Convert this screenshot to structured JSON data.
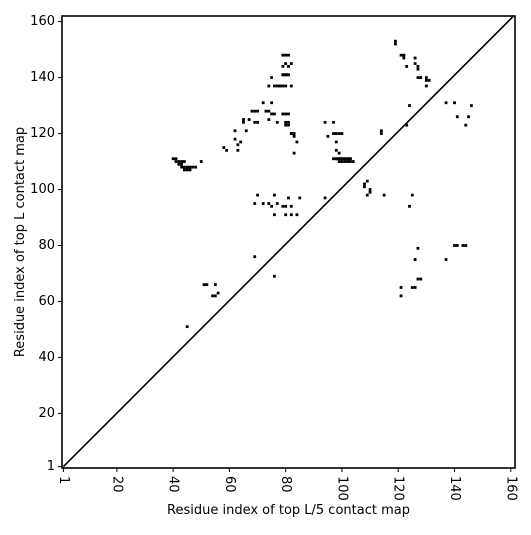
{
  "colors": {
    "background": "#ffffff",
    "axis": "#000000",
    "marks": "#000000"
  },
  "chart_data": {
    "type": "scatter",
    "title": "",
    "xlabel": "Residue index of top L/5 contact map",
    "ylabel": "Residue index of top L contact map",
    "xlim": [
      0.5,
      161.5
    ],
    "ylim": [
      0.5,
      162
    ],
    "xticks": [
      1,
      20,
      40,
      60,
      80,
      100,
      120,
      140,
      160
    ],
    "yticks": [
      1,
      20,
      40,
      60,
      80,
      100,
      120,
      140,
      160
    ],
    "xtick_labels": [
      "1",
      "20",
      "40",
      "60",
      "80",
      "100",
      "120",
      "140",
      "160"
    ],
    "ytick_labels": [
      "1",
      "20",
      "40",
      "60",
      "80",
      "100",
      "120",
      "140",
      "160"
    ],
    "xtick_rotation": "vertical",
    "grid": false,
    "legend": "none",
    "diagonal_line": {
      "x": [
        1,
        161
      ],
      "y": [
        1,
        162
      ]
    },
    "series": [
      {
        "x": [
          40,
          41,
          41,
          42,
          42,
          43,
          43,
          43,
          44,
          44,
          44,
          45,
          45,
          46,
          46,
          47,
          48,
          45,
          50,
          51,
          52,
          54,
          55,
          55,
          56,
          58,
          59,
          62,
          62,
          63,
          63,
          64,
          65,
          65,
          66,
          67,
          68,
          69,
          70,
          69,
          70,
          72,
          73,
          74,
          74,
          75,
          75,
          76,
          77,
          79,
          80,
          81,
          79,
          80,
          81,
          80,
          81,
          82,
          74,
          75,
          76,
          77,
          78,
          79,
          80,
          81,
          82,
          83,
          83,
          84,
          80,
          81,
          82,
          80,
          81,
          82,
          79,
          80,
          81,
          78,
          79,
          80,
          79,
          80,
          69,
          70,
          72,
          74,
          76,
          77,
          76,
          75,
          79,
          80,
          81,
          82,
          83,
          80,
          82,
          84,
          85,
          94,
          95,
          94,
          97,
          98,
          98,
          99,
          97,
          98,
          99,
          100,
          97,
          98,
          99,
          100,
          101,
          102,
          103,
          99,
          100,
          101,
          102,
          103,
          104,
          98,
          99,
          100,
          101,
          102,
          103,
          108,
          108,
          109,
          109,
          110,
          110,
          114,
          114,
          115,
          69,
          76,
          119,
          119,
          121,
          122,
          122,
          123,
          126,
          126,
          127,
          127,
          127,
          128,
          130,
          130,
          130,
          131,
          127,
          126,
          121,
          121,
          124,
          125,
          125,
          126,
          127,
          128,
          123,
          124,
          137,
          140,
          140,
          143,
          145,
          146,
          137,
          141,
          144,
          141,
          144
        ],
        "y": [
          111,
          111,
          110,
          110,
          109,
          110,
          109,
          108,
          110,
          108,
          107,
          108,
          107,
          108,
          107,
          108,
          108,
          51,
          110,
          66,
          66,
          62,
          62,
          66,
          63,
          115,
          114,
          121,
          118,
          116,
          114,
          117,
          124,
          125,
          121,
          125,
          128,
          128,
          128,
          124,
          124,
          131,
          128,
          125,
          128,
          131,
          127,
          127,
          124,
          148,
          148,
          148,
          144,
          145,
          144,
          141,
          141,
          145,
          137,
          140,
          137,
          137,
          137,
          141,
          141,
          141,
          137,
          120,
          119,
          117,
          124,
          124,
          120,
          123,
          123,
          120,
          127,
          127,
          127,
          137,
          137,
          137,
          141,
          141,
          95,
          98,
          95,
          95,
          91,
          95,
          98,
          94,
          94,
          94,
          97,
          94,
          113,
          91,
          91,
          91,
          97,
          97,
          119,
          124,
          120,
          117,
          114,
          113,
          124,
          120,
          120,
          120,
          111,
          111,
          111,
          111,
          111,
          111,
          111,
          110,
          110,
          110,
          110,
          110,
          110,
          111,
          111,
          111,
          111,
          111,
          111,
          102,
          101,
          103,
          98,
          100,
          99,
          120,
          121,
          98,
          76,
          69,
          153,
          152,
          148,
          148,
          147,
          144,
          147,
          145,
          144,
          143,
          140,
          140,
          140,
          139,
          137,
          139,
          79,
          75,
          65,
          62,
          94,
          98,
          65,
          65,
          68,
          68,
          123,
          130,
          75,
          80,
          131,
          80,
          126,
          130,
          131,
          126,
          123,
          80,
          80
        ]
      }
    ]
  }
}
